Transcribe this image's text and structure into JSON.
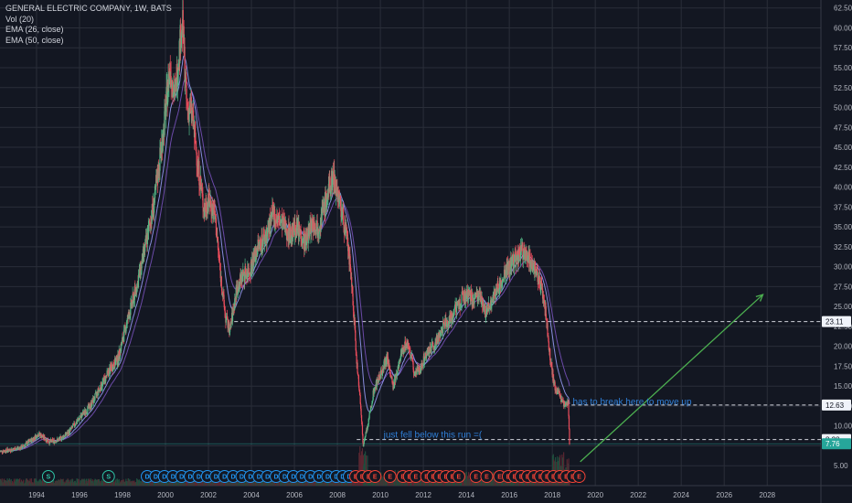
{
  "legend": {
    "symbol_line": "GENERAL ELECTRIC COMPANY, 1W, BATS",
    "volume": "Vol (20)",
    "ema26": "EMA (26, close)",
    "ema50": "EMA (50, close)"
  },
  "chart_data": {
    "type": "line",
    "x_label": "",
    "y_label": "",
    "y_ticks": [
      5.0,
      7.5,
      10.0,
      12.5,
      15.0,
      17.5,
      20.0,
      22.5,
      25.0,
      27.5,
      30.0,
      32.5,
      35.0,
      37.5,
      40.0,
      42.5,
      45.0,
      47.5,
      50.0,
      52.5,
      55.0,
      57.5,
      60.0,
      62.5
    ],
    "x_ticks": [
      "1994",
      "1996",
      "1998",
      "2000",
      "2002",
      "2004",
      "2006",
      "2008",
      "2010",
      "2012",
      "2014",
      "2016",
      "2018",
      "2020",
      "2022",
      "2024",
      "2026",
      "2028"
    ],
    "ylim": [
      2.5,
      63.5
    ],
    "xlim": [
      1992.3,
      2030.5
    ],
    "price_series": {
      "name": "",
      "points": [
        [
          1992.3,
          6.8
        ],
        [
          1992.8,
          7.0
        ],
        [
          1993.3,
          7.3
        ],
        [
          1993.8,
          8.3
        ],
        [
          1994.1,
          9.0
        ],
        [
          1994.6,
          8.0
        ],
        [
          1995.0,
          8.2
        ],
        [
          1995.5,
          9.2
        ],
        [
          1996.0,
          11.0
        ],
        [
          1996.5,
          12.5
        ],
        [
          1997.0,
          15.0
        ],
        [
          1997.4,
          17.0
        ],
        [
          1997.8,
          18.5
        ],
        [
          1998.2,
          23.0
        ],
        [
          1998.7,
          28.0
        ],
        [
          1999.1,
          33.0
        ],
        [
          1999.5,
          38.5
        ],
        [
          1999.9,
          47.0
        ],
        [
          2000.2,
          55.0
        ],
        [
          2000.45,
          51.5
        ],
        [
          2000.7,
          59.0
        ],
        [
          2000.8,
          60.3
        ],
        [
          2001.0,
          49.5
        ],
        [
          2001.2,
          50.0
        ],
        [
          2001.5,
          43.0
        ],
        [
          2001.8,
          37.0
        ],
        [
          2002.0,
          38.5
        ],
        [
          2002.3,
          36.5
        ],
        [
          2002.6,
          28.0
        ],
        [
          2002.8,
          23.5
        ],
        [
          2003.0,
          22.0
        ],
        [
          2003.3,
          27.0
        ],
        [
          2003.6,
          29.0
        ],
        [
          2003.9,
          29.5
        ],
        [
          2004.3,
          32.5
        ],
        [
          2004.7,
          34.0
        ],
        [
          2005.0,
          36.5
        ],
        [
          2005.4,
          35.5
        ],
        [
          2005.8,
          34.0
        ],
        [
          2006.1,
          35.0
        ],
        [
          2006.5,
          33.0
        ],
        [
          2006.8,
          35.5
        ],
        [
          2007.1,
          35.0
        ],
        [
          2007.5,
          38.5
        ],
        [
          2007.8,
          41.5
        ],
        [
          2007.95,
          40.0
        ],
        [
          2008.2,
          37.0
        ],
        [
          2008.5,
          32.5
        ],
        [
          2008.7,
          27.0
        ],
        [
          2008.9,
          18.0
        ],
        [
          2009.1,
          12.0
        ],
        [
          2009.2,
          7.5
        ],
        [
          2009.4,
          10.0
        ],
        [
          2009.7,
          14.5
        ],
        [
          2010.0,
          16.5
        ],
        [
          2010.3,
          18.5
        ],
        [
          2010.6,
          15.0
        ],
        [
          2011.0,
          19.5
        ],
        [
          2011.3,
          20.5
        ],
        [
          2011.6,
          16.5
        ],
        [
          2011.9,
          17.5
        ],
        [
          2012.2,
          19.5
        ],
        [
          2012.5,
          20.0
        ],
        [
          2012.8,
          22.0
        ],
        [
          2013.1,
          23.0
        ],
        [
          2013.5,
          24.5
        ],
        [
          2013.9,
          26.5
        ],
        [
          2014.3,
          26.0
        ],
        [
          2014.7,
          26.0
        ],
        [
          2014.9,
          24.0
        ],
        [
          2015.1,
          25.0
        ],
        [
          2015.4,
          27.0
        ],
        [
          2015.7,
          28.5
        ],
        [
          2016.0,
          30.0
        ],
        [
          2016.3,
          31.0
        ],
        [
          2016.6,
          32.0
        ],
        [
          2016.9,
          31.0
        ],
        [
          2017.2,
          30.0
        ],
        [
          2017.5,
          27.0
        ],
        [
          2017.7,
          24.0
        ],
        [
          2017.9,
          18.5
        ],
        [
          2018.1,
          15.0
        ],
        [
          2018.4,
          13.5
        ],
        [
          2018.6,
          12.5
        ],
        [
          2018.75,
          12.8
        ],
        [
          2018.8,
          7.76
        ]
      ]
    },
    "ema26_series": {
      "name": "EMA (26, close)"
    },
    "ema50_series": {
      "name": "EMA (50, close)"
    },
    "horizontal_lines": [
      23.11,
      12.63,
      8.28
    ],
    "price_tags": [
      {
        "value": 23.11,
        "label": "23.11"
      },
      {
        "value": 12.63,
        "label": "12.63"
      },
      {
        "value": 8.28,
        "label": "8.28"
      },
      {
        "value": 7.76,
        "label": "7.76"
      }
    ],
    "upward_arrow": {
      "from": [
        2019.3,
        5.5
      ],
      "to": [
        2027.8,
        26.5
      ]
    },
    "annotations": [
      {
        "text": "has to break here to move up",
        "x": 2018.95,
        "y": 12.8
      },
      {
        "text": "just fell below this run =(",
        "x": 2010.15,
        "y": 8.65
      }
    ],
    "event_badges": [
      {
        "label": "S",
        "year": 1994.55,
        "kind": "split"
      },
      {
        "label": "S",
        "year": 1997.35,
        "kind": "split"
      },
      {
        "label": "D",
        "year": 1999.15,
        "kind": "dividend"
      },
      {
        "label": "D",
        "year": 1999.55,
        "kind": "dividend"
      },
      {
        "label": "D",
        "year": 1999.95,
        "kind": "dividend"
      },
      {
        "label": "D",
        "year": 2000.35,
        "kind": "dividend"
      },
      {
        "label": "D",
        "year": 2000.75,
        "kind": "dividend"
      },
      {
        "label": "D",
        "year": 2001.15,
        "kind": "dividend"
      },
      {
        "label": "D",
        "year": 2001.55,
        "kind": "dividend"
      },
      {
        "label": "D",
        "year": 2001.95,
        "kind": "dividend"
      },
      {
        "label": "D",
        "year": 2002.35,
        "kind": "dividend"
      },
      {
        "label": "D",
        "year": 2002.75,
        "kind": "dividend"
      },
      {
        "label": "D",
        "year": 2003.15,
        "kind": "dividend"
      },
      {
        "label": "D",
        "year": 2003.55,
        "kind": "dividend"
      },
      {
        "label": "D",
        "year": 2003.95,
        "kind": "dividend"
      },
      {
        "label": "D",
        "year": 2004.35,
        "kind": "dividend"
      },
      {
        "label": "D",
        "year": 2004.75,
        "kind": "dividend"
      },
      {
        "label": "D",
        "year": 2005.15,
        "kind": "dividend"
      },
      {
        "label": "D",
        "year": 2005.55,
        "kind": "dividend"
      },
      {
        "label": "D",
        "year": 2005.95,
        "kind": "dividend"
      },
      {
        "label": "D",
        "year": 2006.35,
        "kind": "dividend"
      },
      {
        "label": "D",
        "year": 2006.75,
        "kind": "dividend"
      },
      {
        "label": "D",
        "year": 2007.15,
        "kind": "dividend"
      },
      {
        "label": "D",
        "year": 2007.55,
        "kind": "dividend"
      },
      {
        "label": "D",
        "year": 2007.95,
        "kind": "dividend"
      },
      {
        "label": "D",
        "year": 2008.25,
        "kind": "dividend"
      },
      {
        "label": "D",
        "year": 2008.55,
        "kind": "dividend"
      },
      {
        "label": "E",
        "year": 2008.85,
        "kind": "earnings"
      },
      {
        "label": "E",
        "year": 2009.15,
        "kind": "earnings"
      },
      {
        "label": "E",
        "year": 2009.45,
        "kind": "earnings"
      },
      {
        "label": "E",
        "year": 2009.75,
        "kind": "earnings"
      },
      {
        "label": "E",
        "year": 2010.45,
        "kind": "earnings"
      },
      {
        "label": "E",
        "year": 2011.05,
        "kind": "earnings"
      },
      {
        "label": "E",
        "year": 2011.35,
        "kind": "earnings"
      },
      {
        "label": "E",
        "year": 2011.65,
        "kind": "earnings"
      },
      {
        "label": "E",
        "year": 2012.15,
        "kind": "earnings"
      },
      {
        "label": "E",
        "year": 2012.45,
        "kind": "earnings"
      },
      {
        "label": "E",
        "year": 2012.75,
        "kind": "earnings"
      },
      {
        "label": "E",
        "year": 2013.05,
        "kind": "earnings"
      },
      {
        "label": "E",
        "year": 2013.35,
        "kind": "earnings"
      },
      {
        "label": "E",
        "year": 2013.65,
        "kind": "earnings"
      },
      {
        "label": "E",
        "year": 2014.45,
        "kind": "earnings"
      },
      {
        "label": "E",
        "year": 2014.95,
        "kind": "earnings"
      },
      {
        "label": "E",
        "year": 2015.55,
        "kind": "earnings"
      },
      {
        "label": "E",
        "year": 2015.95,
        "kind": "earnings"
      },
      {
        "label": "E",
        "year": 2016.25,
        "kind": "earnings"
      },
      {
        "label": "E",
        "year": 2016.55,
        "kind": "earnings"
      },
      {
        "label": "E",
        "year": 2016.85,
        "kind": "earnings"
      },
      {
        "label": "E",
        "year": 2017.15,
        "kind": "earnings"
      },
      {
        "label": "E",
        "year": 2017.45,
        "kind": "earnings"
      },
      {
        "label": "E",
        "year": 2017.75,
        "kind": "earnings"
      },
      {
        "label": "E",
        "year": 2018.05,
        "kind": "earnings"
      },
      {
        "label": "E",
        "year": 2018.35,
        "kind": "earnings"
      },
      {
        "label": "E",
        "year": 2018.65,
        "kind": "earnings"
      },
      {
        "label": "E",
        "year": 2018.95,
        "kind": "earnings"
      },
      {
        "label": "E",
        "year": 2019.25,
        "kind": "earnings"
      }
    ],
    "colors": {
      "background": "#131722",
      "grid": "#2a2e39",
      "up_candle": "#53b987",
      "down_candle": "#eb4d5c",
      "ema26": "#9598f0",
      "ema50": "#6b4aa8",
      "arrow": "#4caf50",
      "annotation": "#2f7fd8",
      "hline": "#d1d4dc",
      "tag_bg": "#f0f3fa",
      "tag_last": "#26a69a",
      "axis_text": "#b2b5be"
    }
  }
}
